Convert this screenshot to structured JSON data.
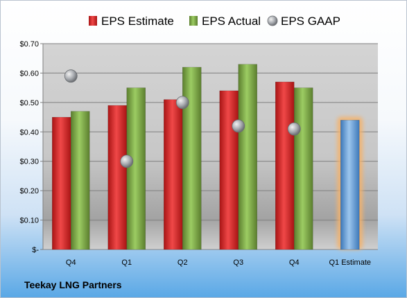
{
  "company": "Teekay LNG Partners",
  "chart_data": {
    "type": "bar",
    "categories": [
      "Q4",
      "Q1",
      "Q2",
      "Q3",
      "Q4",
      "Q1 Estimate"
    ],
    "series": [
      {
        "name": "EPS Estimate",
        "values": [
          0.45,
          0.49,
          0.51,
          0.54,
          0.57,
          null
        ],
        "color": "#d42a2a"
      },
      {
        "name": "EPS Actual",
        "values": [
          0.47,
          0.55,
          0.62,
          0.63,
          0.55,
          null
        ],
        "color": "#7ea54a"
      },
      {
        "name": "EPS GAAP",
        "type": "scatter",
        "values": [
          0.59,
          0.3,
          0.5,
          0.42,
          0.41,
          null
        ],
        "color": "#a8abb0"
      },
      {
        "name": "",
        "values": [
          null,
          null,
          null,
          null,
          null,
          0.44
        ],
        "color": "#6fa8dc",
        "highlight": "#f6b26b"
      }
    ],
    "y_ticks": [
      "$0.70",
      "$0.60",
      "$0.50",
      "$0.40",
      "$0.30",
      "$0.20",
      "$0.10",
      "$-"
    ],
    "ylim": [
      0,
      0.7
    ],
    "grid": true,
    "legend_position": "top"
  }
}
